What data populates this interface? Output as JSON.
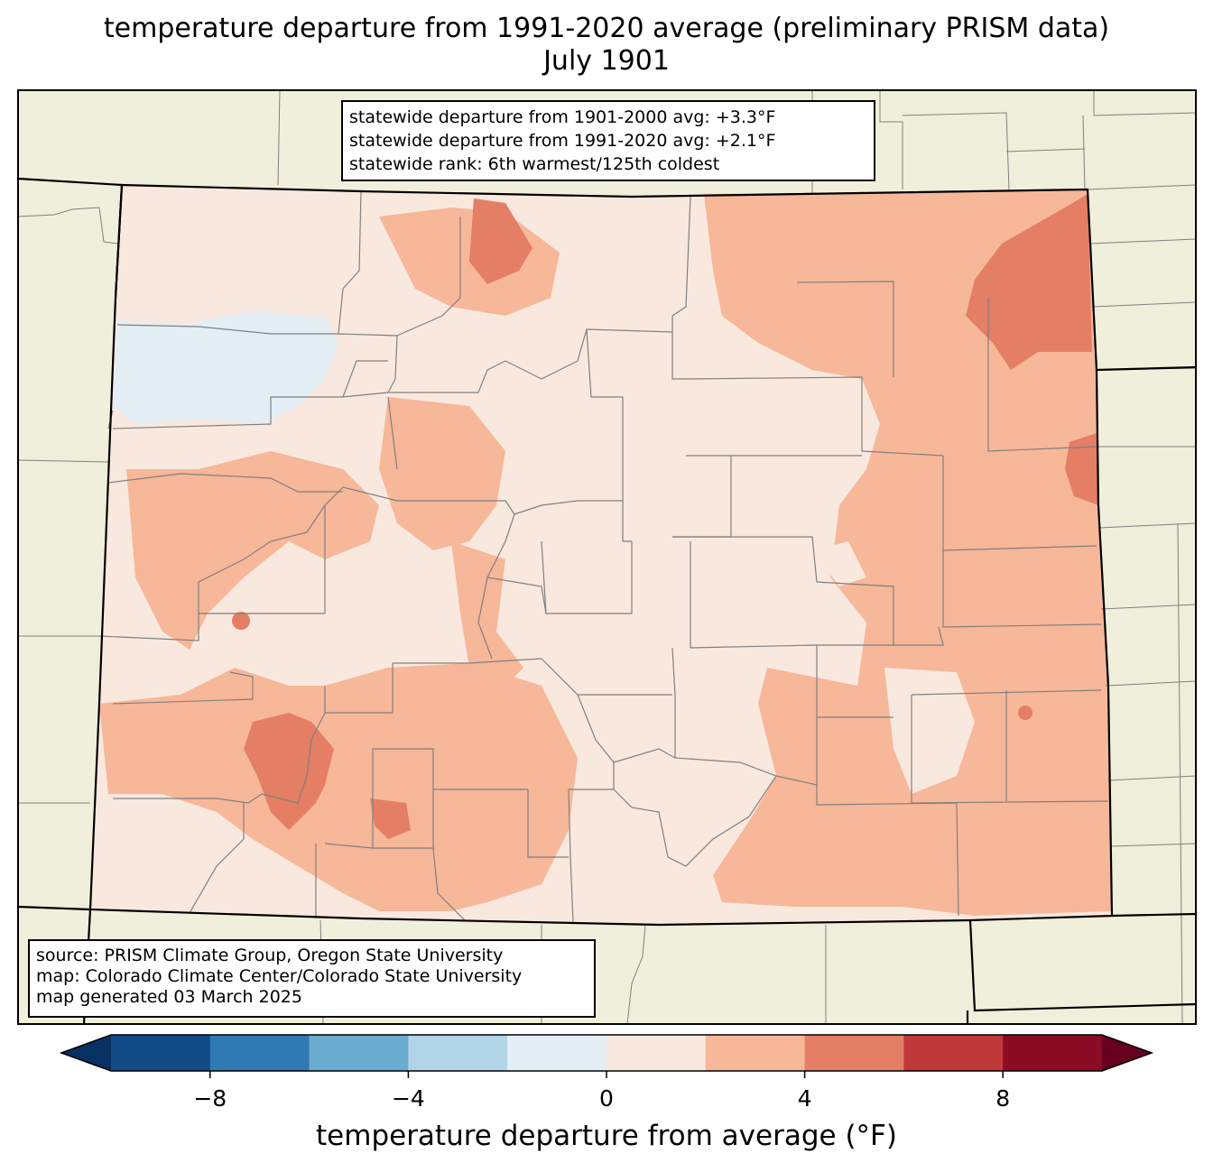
{
  "title": {
    "line1": "temperature departure from 1991-2020 average (preliminary PRISM data)",
    "line2": "July 1901"
  },
  "stats": {
    "line1": "statewide departure from 1901-2000 avg: +3.3°F",
    "line2": "statewide departure from 1991-2020 avg: +2.1°F",
    "line3": "statewide rank: 6th warmest/125th coldest"
  },
  "credits": {
    "line1": "source: PRISM Climate Group, Oregon State University",
    "line2": "map: Colorado Climate Center/Colorado State University",
    "line3": "map generated 03 March 2025"
  },
  "colorbar": {
    "label": "temperature departure from average (°F)",
    "ticks": [
      "−8",
      "−4",
      "0",
      "4",
      "8"
    ],
    "tick_values": [
      -8,
      -4,
      0,
      4,
      8
    ],
    "range": [
      -10,
      10
    ],
    "step": 2,
    "colors": [
      "#134b87",
      "#2f79b5",
      "#6bacd1",
      "#b1d5e7",
      "#e4eef5",
      "#f9e8de",
      "#f7b799",
      "#e47e65",
      "#c0383a",
      "#8a0c25"
    ],
    "extend_low_color": "#073063",
    "extend_high_color": "#67001f"
  },
  "map_colors": {
    "background": "#f0efdb",
    "neutral": "#f9e8de",
    "warm": "#f7b799",
    "warmer": "#e47e65",
    "hot": "#c0383a",
    "cool": "#e4eef5"
  }
}
